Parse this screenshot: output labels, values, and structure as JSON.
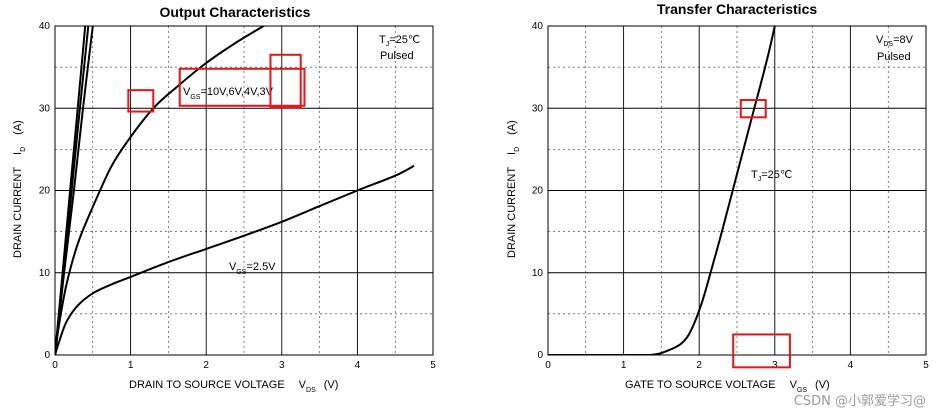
{
  "chart_data": [
    {
      "type": "line",
      "title": "Output Characteristics",
      "xlabel": "DRAIN TO SOURCE VOLTAGE",
      "xlabel_symbol": "V",
      "xlabel_sub": "DS",
      "xlabel_unit": "(V)",
      "ylabel": "DRAIN CURRENT",
      "ylabel_symbol": "I",
      "ylabel_sub": "D",
      "ylabel_unit": "(A)",
      "xlim": [
        0,
        5
      ],
      "ylim": [
        0,
        40
      ],
      "xticks": [
        0,
        1,
        2,
        3,
        4,
        5
      ],
      "yticks": [
        0,
        10,
        20,
        30,
        40
      ],
      "grid": true,
      "notes": {
        "temp": "T",
        "temp_sub": "J",
        "temp_val": "=25℃",
        "pulsed": "Pulsed"
      },
      "series": [
        {
          "id": "s1",
          "x": [
            0,
            0.1,
            0.2,
            0.3,
            0.4
          ],
          "y": [
            0,
            10,
            20,
            30,
            40
          ]
        },
        {
          "id": "s2",
          "x": [
            0,
            0.11,
            0.22,
            0.33,
            0.44
          ],
          "y": [
            0,
            10,
            20,
            30,
            40
          ]
        },
        {
          "id": "s3",
          "x": [
            0,
            0.12,
            0.25,
            0.37,
            0.5
          ],
          "y": [
            0,
            10,
            20,
            30,
            40
          ]
        },
        {
          "id": "s4",
          "x": [
            0,
            0.05,
            0.15,
            0.3,
            0.5,
            0.75,
            1.0,
            1.3,
            1.6,
            2.0,
            2.4,
            2.85
          ],
          "y": [
            0,
            3.5,
            8.5,
            13.5,
            18,
            23,
            26.5,
            30,
            32.5,
            35.5,
            38,
            40.5
          ]
        },
        {
          "id": "s5",
          "x": [
            0,
            0.05,
            0.15,
            0.3,
            0.5,
            0.75,
            1.0,
            1.5,
            2.0,
            2.5,
            3.0,
            3.5,
            4.0,
            4.5,
            4.75
          ],
          "y": [
            0,
            1.5,
            4,
            6,
            7.5,
            8.6,
            9.5,
            11.3,
            12.9,
            14.5,
            16.2,
            18.1,
            20.0,
            21.8,
            23.0
          ]
        }
      ],
      "annotations": [
        {
          "id": "vgs_high",
          "text": "V",
          "sub": "GS",
          "rest": "=10V,6V,4V,3V"
        },
        {
          "id": "vgs_low",
          "text": "V",
          "sub": "GS",
          "rest": "=2.5V"
        }
      ],
      "highlight_boxes": [
        {
          "id": "box1",
          "x": [
            0.97,
            1.3
          ],
          "y": [
            29.6,
            32.2
          ]
        },
        {
          "id": "box2",
          "x": [
            1.65,
            3.3
          ],
          "y": [
            30.3,
            34.8
          ]
        },
        {
          "id": "box3",
          "x": [
            2.85,
            3.25
          ],
          "y": [
            30.1,
            36.5
          ]
        }
      ],
      "line_color": "#000000",
      "highlight_color": "#e3161b"
    },
    {
      "type": "line",
      "title": "Transfer Characteristics",
      "xlabel": "GATE TO SOURCE VOLTAGE",
      "xlabel_symbol": "V",
      "xlabel_sub": "GS",
      "xlabel_unit": "(V)",
      "ylabel": "DRAIN CURRENT",
      "ylabel_symbol": "I",
      "ylabel_sub": "D",
      "ylabel_unit": "(A)",
      "xlim": [
        0,
        5
      ],
      "ylim": [
        0,
        40
      ],
      "xticks": [
        0,
        1,
        2,
        3,
        4,
        5
      ],
      "yticks": [
        0,
        10,
        20,
        30,
        40
      ],
      "grid": true,
      "notes": {
        "vds": "V",
        "vds_sub": "DS",
        "vds_val": "=8V",
        "pulsed": "Pulsed"
      },
      "series": [
        {
          "id": "t1",
          "x": [
            0,
            1.0,
            1.4,
            1.6,
            1.75,
            1.85,
            1.95,
            2.05,
            2.15,
            2.3,
            2.5,
            2.7,
            2.9,
            3.0
          ],
          "y": [
            0,
            0,
            0.05,
            0.6,
            1.3,
            2.3,
            4.2,
            6.8,
            10,
            15,
            22,
            29,
            36,
            40
          ]
        }
      ],
      "annotations": [
        {
          "id": "tj",
          "text": "T",
          "sub": "J",
          "rest": "=25℃"
        }
      ],
      "highlight_boxes": [
        {
          "id": "box4",
          "x": [
            2.55,
            2.88
          ],
          "y": [
            28.9,
            31.0
          ]
        },
        {
          "id": "box5",
          "x": [
            2.45,
            3.2
          ],
          "y": [
            -1.5,
            2.5
          ]
        }
      ],
      "line_color": "#000000",
      "highlight_color": "#e3161b"
    }
  ],
  "watermark": "CSDN @小郭爱学习@"
}
